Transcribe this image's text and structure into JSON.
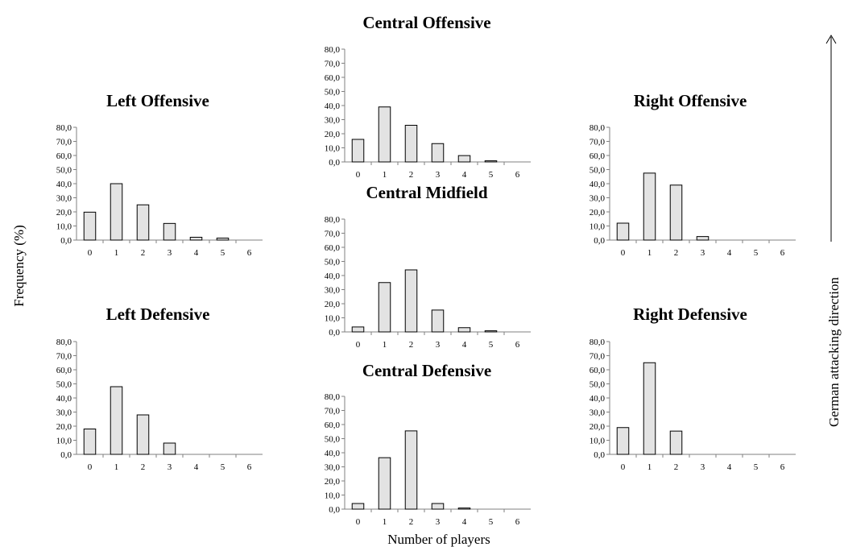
{
  "figure": {
    "ylabel": "Frequency (%)",
    "xlabel": "Number of players",
    "direction_label": "German attacking direction"
  },
  "chart_data": [
    {
      "type": "bar",
      "title": "Left Offensive",
      "categories": [
        "0",
        "1",
        "2",
        "3",
        "4",
        "5",
        "6"
      ],
      "values": [
        19.8,
        40.0,
        25.0,
        11.8,
        2.0,
        1.4,
        0.0
      ],
      "ylim": [
        0,
        80
      ],
      "yticks": [
        "0,0",
        "10,0",
        "20,0",
        "30,0",
        "40,0",
        "50,0",
        "60,0",
        "70,0",
        "80,0"
      ]
    },
    {
      "type": "bar",
      "title": "Central Offensive",
      "categories": [
        "0",
        "1",
        "2",
        "3",
        "4",
        "5",
        "6"
      ],
      "values": [
        16.0,
        39.0,
        26.0,
        13.0,
        4.5,
        0.8,
        0.0
      ],
      "ylim": [
        0,
        80
      ],
      "yticks": [
        "0,0",
        "10,0",
        "20,0",
        "30,0",
        "40,0",
        "50,0",
        "60,0",
        "70,0",
        "80,0"
      ]
    },
    {
      "type": "bar",
      "title": "Right Offensive",
      "categories": [
        "0",
        "1",
        "2",
        "3",
        "4",
        "5",
        "6"
      ],
      "values": [
        12.0,
        47.5,
        39.0,
        2.5,
        0.0,
        0.0,
        0.0
      ],
      "ylim": [
        0,
        80
      ],
      "yticks": [
        "0,0",
        "10,0",
        "20,0",
        "30,0",
        "40,0",
        "50,0",
        "60,0",
        "70,0",
        "80,0"
      ]
    },
    {
      "type": "bar",
      "title": "Central Midfield",
      "categories": [
        "0",
        "1",
        "2",
        "3",
        "4",
        "5",
        "6"
      ],
      "values": [
        3.5,
        35.0,
        44.0,
        15.5,
        3.0,
        0.8,
        0.0
      ],
      "ylim": [
        0,
        80
      ],
      "yticks": [
        "0,0",
        "10,0",
        "20,0",
        "30,0",
        "40,0",
        "50,0",
        "60,0",
        "70,0",
        "80,0"
      ]
    },
    {
      "type": "bar",
      "title": "Left Defensive",
      "categories": [
        "0",
        "1",
        "2",
        "3",
        "4",
        "5",
        "6"
      ],
      "values": [
        18.0,
        48.0,
        28.0,
        8.0,
        0.0,
        0.0,
        0.0
      ],
      "ylim": [
        0,
        80
      ],
      "yticks": [
        "0,0",
        "10,0",
        "20,0",
        "30,0",
        "40,0",
        "50,0",
        "60,0",
        "70,0",
        "80,0"
      ]
    },
    {
      "type": "bar",
      "title": "Central Defensive",
      "categories": [
        "0",
        "1",
        "2",
        "3",
        "4",
        "5",
        "6"
      ],
      "values": [
        4.0,
        36.5,
        55.5,
        4.0,
        0.8,
        0.0,
        0.0
      ],
      "ylim": [
        0,
        80
      ],
      "yticks": [
        "0,0",
        "10,0",
        "20,0",
        "30,0",
        "40,0",
        "50,0",
        "60,0",
        "70,0",
        "80,0"
      ]
    },
    {
      "type": "bar",
      "title": "Right Defensive",
      "categories": [
        "0",
        "1",
        "2",
        "3",
        "4",
        "5",
        "6"
      ],
      "values": [
        19.0,
        65.0,
        16.5,
        0.0,
        0.0,
        0.0,
        0.0
      ],
      "ylim": [
        0,
        80
      ],
      "yticks": [
        "0,0",
        "10,0",
        "20,0",
        "30,0",
        "40,0",
        "50,0",
        "60,0",
        "70,0",
        "80,0"
      ]
    }
  ]
}
